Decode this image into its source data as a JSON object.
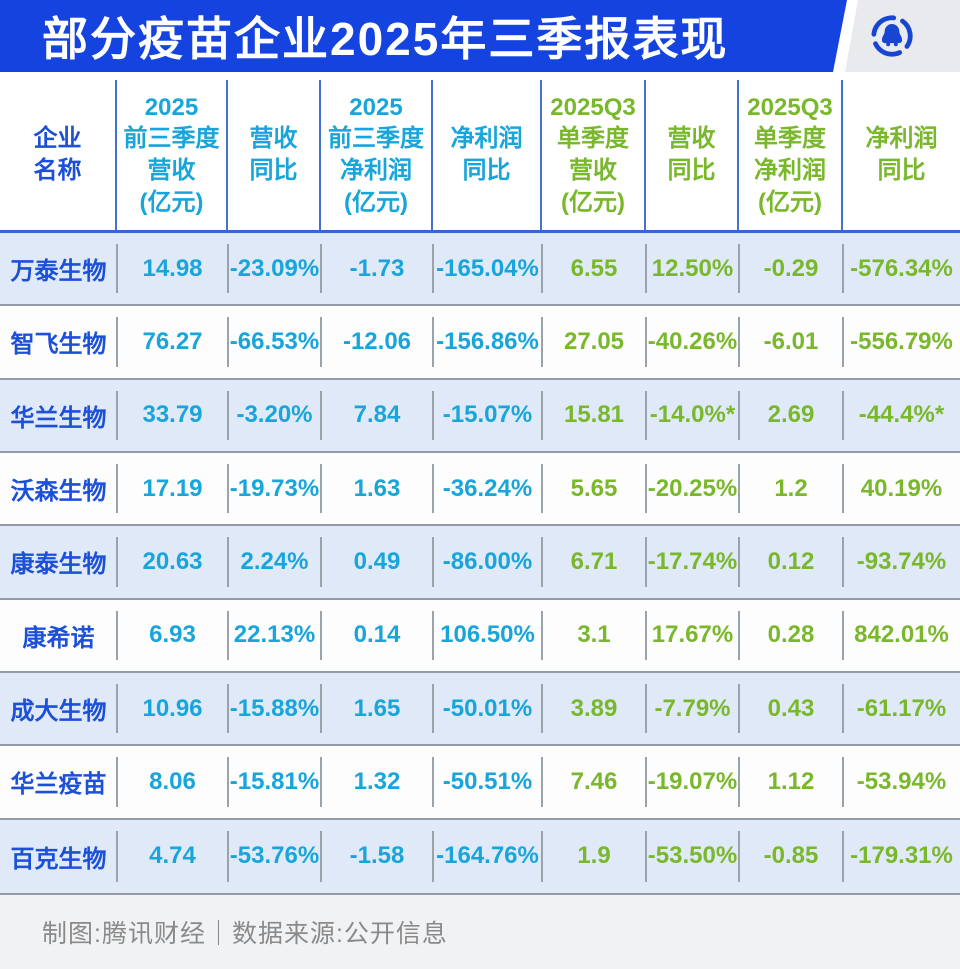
{
  "header": {
    "title": "部分疫苗企业2025年三季报表现",
    "logo_icon": "tencent-news-penguin-icon",
    "banner_color": "#1543DF",
    "logo_box_color": "#E9EAED",
    "logo_color": "#1846D2"
  },
  "table": {
    "header_cells": [
      {
        "label": "企业\n名称",
        "group": "name"
      },
      {
        "label": "2025\n前三季度\n营收\n(亿元)",
        "group": "ytd"
      },
      {
        "label": "营收\n同比",
        "group": "ytd"
      },
      {
        "label": "2025\n前三季度\n净利润\n(亿元)",
        "group": "ytd"
      },
      {
        "label": "净利润\n同比",
        "group": "ytd"
      },
      {
        "label": "2025Q3\n单季度\n营收\n(亿元)",
        "group": "q3"
      },
      {
        "label": "营收\n同比",
        "group": "q3"
      },
      {
        "label": "2025Q3\n单季度\n净利润\n(亿元)",
        "group": "q3"
      },
      {
        "label": "净利润\n同比",
        "group": "q3"
      }
    ]
  },
  "chart_data": {
    "type": "table",
    "title": "部分疫苗企业2025年三季报表现",
    "columns": [
      "企业名称",
      "2025前三季度营收(亿元)",
      "营收同比",
      "2025前三季度净利润(亿元)",
      "净利润同比",
      "2025Q3单季度营收(亿元)",
      "营收同比",
      "2025Q3单季度净利润(亿元)",
      "净利润同比"
    ],
    "rows": [
      [
        "万泰生物",
        "14.98",
        "-23.09%",
        "-1.73",
        "-165.04%",
        "6.55",
        "12.50%",
        "-0.29",
        "-576.34%"
      ],
      [
        "智飞生物",
        "76.27",
        "-66.53%",
        "-12.06",
        "-156.86%",
        "27.05",
        "-40.26%",
        "-6.01",
        "-556.79%"
      ],
      [
        "华兰生物",
        "33.79",
        "-3.20%",
        "7.84",
        "-15.07%",
        "15.81",
        "-14.0%*",
        "2.69",
        "-44.4%*"
      ],
      [
        "沃森生物",
        "17.19",
        "-19.73%",
        "1.63",
        "-36.24%",
        "5.65",
        "-20.25%",
        "1.2",
        "40.19%"
      ],
      [
        "康泰生物",
        "20.63",
        "2.24%",
        "0.49",
        "-86.00%",
        "6.71",
        "-17.74%",
        "0.12",
        "-93.74%"
      ],
      [
        "康希诺",
        "6.93",
        "22.13%",
        "0.14",
        "106.50%",
        "3.1",
        "17.67%",
        "0.28",
        "842.01%"
      ],
      [
        "成大生物",
        "10.96",
        "-15.88%",
        "1.65",
        "-50.01%",
        "3.89",
        "-7.79%",
        "0.43",
        "-61.17%"
      ],
      [
        "华兰疫苗",
        "8.06",
        "-15.81%",
        "1.32",
        "-50.51%",
        "7.46",
        "-19.07%",
        "1.12",
        "-53.94%"
      ],
      [
        "百克生物",
        "4.74",
        "-53.76%",
        "-1.58",
        "-164.76%",
        "1.9",
        "-53.50%",
        "-0.85",
        "-179.31%"
      ]
    ],
    "legend": "none",
    "layout": {
      "alternating_row_bg": "#DFE9F7",
      "ytd_text_color": "#17A5DB",
      "q3_text_color": "#79B72B",
      "company_text_color": "#1C50D8"
    }
  },
  "footer": {
    "credit": "制图:腾讯财经｜数据来源:公开信息"
  }
}
